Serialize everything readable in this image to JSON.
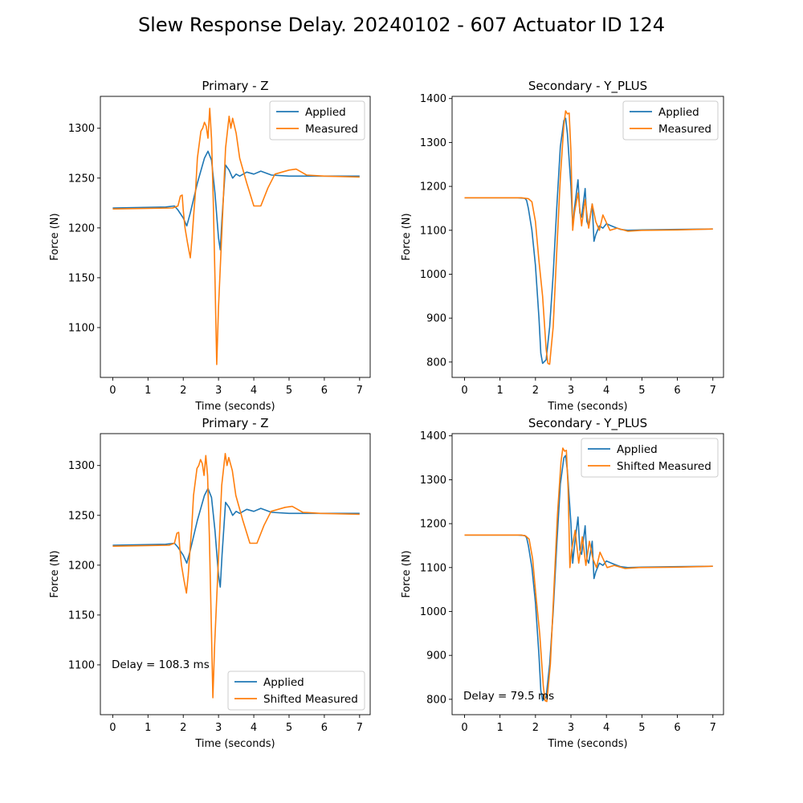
{
  "figure": {
    "title": "Slew Response Delay. 20240102 - 607 Actuator ID 124"
  },
  "colors": {
    "applied": "#1f77b4",
    "measured": "#ff7f0e"
  },
  "chart_data": [
    {
      "type": "line",
      "title": "Primary - Z",
      "xlabel": "Time (seconds)",
      "ylabel": "Force (N)",
      "xlim": [
        -0.35,
        7.3
      ],
      "ylim": [
        1050,
        1332
      ],
      "xticks": [
        0,
        1,
        2,
        3,
        4,
        5,
        6,
        7
      ],
      "yticks": [
        1100,
        1150,
        1200,
        1250,
        1300
      ],
      "legend": "upper-right",
      "annotation": "",
      "series": [
        {
          "name": "Applied",
          "color": "#1f77b4",
          "x": [
            0,
            1.5,
            1.75,
            1.85,
            2.0,
            2.1,
            2.2,
            2.4,
            2.6,
            2.7,
            2.8,
            2.9,
            3.0,
            3.05,
            3.1,
            3.2,
            3.3,
            3.4,
            3.5,
            3.6,
            3.8,
            4.0,
            4.2,
            4.5,
            5.0,
            6.0,
            7.0
          ],
          "y": [
            1220,
            1221,
            1222,
            1218,
            1210,
            1202,
            1215,
            1245,
            1270,
            1277,
            1268,
            1235,
            1190,
            1178,
            1210,
            1263,
            1258,
            1250,
            1254,
            1252,
            1256,
            1254,
            1257,
            1253,
            1252,
            1252,
            1252
          ]
        },
        {
          "name": "Measured",
          "color": "#ff7f0e",
          "x": [
            0,
            1.7,
            1.85,
            1.92,
            1.97,
            2.0,
            2.05,
            2.12,
            2.2,
            2.25,
            2.3,
            2.35,
            2.4,
            2.5,
            2.55,
            2.6,
            2.65,
            2.7,
            2.75,
            2.8,
            2.85,
            2.9,
            2.95,
            3.0,
            3.05,
            3.1,
            3.2,
            3.3,
            3.35,
            3.4,
            3.5,
            3.6,
            3.8,
            4.0,
            4.2,
            4.4,
            4.6,
            5.0,
            5.2,
            5.5,
            6.0,
            7.0
          ],
          "y": [
            1219,
            1220,
            1222,
            1232,
            1233,
            1218,
            1200,
            1185,
            1170,
            1190,
            1215,
            1238,
            1270,
            1297,
            1300,
            1306,
            1302,
            1290,
            1320,
            1290,
            1230,
            1150,
            1063,
            1120,
            1160,
            1200,
            1280,
            1312,
            1300,
            1310,
            1295,
            1270,
            1245,
            1222,
            1222,
            1240,
            1254,
            1258,
            1259,
            1253,
            1252,
            1251
          ]
        }
      ]
    },
    {
      "type": "line",
      "title": "Secondary - Y_PLUS",
      "xlabel": "Time (seconds)",
      "ylabel": "Force (N)",
      "xlim": [
        -0.35,
        7.3
      ],
      "ylim": [
        765,
        1405
      ],
      "xticks": [
        0,
        1,
        2,
        3,
        4,
        5,
        6,
        7
      ],
      "yticks": [
        800,
        900,
        1000,
        1100,
        1200,
        1300,
        1400
      ],
      "legend": "upper-right",
      "annotation": "",
      "series": [
        {
          "name": "Applied",
          "color": "#1f77b4",
          "x": [
            0,
            1.5,
            1.7,
            1.75,
            1.8,
            1.9,
            2.0,
            2.1,
            2.15,
            2.2,
            2.3,
            2.4,
            2.5,
            2.6,
            2.7,
            2.8,
            2.85,
            2.9,
            3.0,
            3.05,
            3.1,
            3.2,
            3.25,
            3.3,
            3.4,
            3.45,
            3.5,
            3.6,
            3.65,
            3.7,
            3.8,
            3.9,
            4.0,
            4.2,
            4.4,
            4.6,
            5.0,
            6.0,
            7.0
          ],
          "y": [
            1174,
            1174,
            1173,
            1168,
            1150,
            1100,
            1020,
            900,
            820,
            797,
            805,
            880,
            1000,
            1150,
            1290,
            1350,
            1355,
            1320,
            1200,
            1110,
            1150,
            1215,
            1140,
            1130,
            1195,
            1120,
            1110,
            1160,
            1075,
            1090,
            1110,
            1105,
            1115,
            1108,
            1102,
            1100,
            1101,
            1102,
            1103
          ]
        },
        {
          "name": "Measured",
          "color": "#ff7f0e",
          "x": [
            0,
            1.6,
            1.8,
            1.9,
            2.0,
            2.1,
            2.2,
            2.3,
            2.35,
            2.4,
            2.5,
            2.6,
            2.7,
            2.8,
            2.85,
            2.9,
            2.95,
            3.0,
            3.05,
            3.1,
            3.2,
            3.3,
            3.4,
            3.5,
            3.6,
            3.7,
            3.8,
            3.9,
            4.1,
            4.3,
            4.6,
            5.0,
            6.0,
            7.0
          ],
          "y": [
            1174,
            1174,
            1172,
            1165,
            1120,
            1030,
            950,
            830,
            797,
            795,
            880,
            1050,
            1220,
            1340,
            1372,
            1365,
            1367,
            1280,
            1100,
            1140,
            1185,
            1110,
            1170,
            1105,
            1160,
            1120,
            1100,
            1135,
            1100,
            1105,
            1098,
            1100,
            1101,
            1103
          ]
        }
      ]
    },
    {
      "type": "line",
      "title": "Primary - Z",
      "xlabel": "Time (seconds)",
      "ylabel": "Force (N)",
      "xlim": [
        -0.35,
        7.3
      ],
      "ylim": [
        1050,
        1332
      ],
      "xticks": [
        0,
        1,
        2,
        3,
        4,
        5,
        6,
        7
      ],
      "yticks": [
        1100,
        1150,
        1200,
        1250,
        1300
      ],
      "legend": "lower-right",
      "annotation": "Delay = 108.3 ms",
      "series": [
        {
          "name": "Applied",
          "color": "#1f77b4",
          "x": [
            0,
            1.5,
            1.75,
            1.85,
            2.0,
            2.1,
            2.2,
            2.4,
            2.6,
            2.7,
            2.8,
            2.9,
            3.0,
            3.05,
            3.1,
            3.2,
            3.3,
            3.4,
            3.5,
            3.6,
            3.8,
            4.0,
            4.2,
            4.5,
            5.0,
            6.0,
            7.0
          ],
          "y": [
            1220,
            1221,
            1222,
            1218,
            1210,
            1202,
            1215,
            1245,
            1270,
            1277,
            1268,
            1235,
            1190,
            1178,
            1210,
            1263,
            1258,
            1250,
            1254,
            1252,
            1256,
            1254,
            1257,
            1253,
            1252,
            1252,
            1252
          ]
        },
        {
          "name": "Shifted Measured",
          "color": "#ff7f0e",
          "x": [
            0,
            1.6,
            1.75,
            1.82,
            1.87,
            1.9,
            1.95,
            2.02,
            2.09,
            2.14,
            2.19,
            2.24,
            2.29,
            2.39,
            2.44,
            2.49,
            2.54,
            2.59,
            2.64,
            2.69,
            2.74,
            2.79,
            2.84,
            2.89,
            2.94,
            2.99,
            3.09,
            3.19,
            3.24,
            3.29,
            3.39,
            3.49,
            3.69,
            3.89,
            4.09,
            4.29,
            4.49,
            4.89,
            5.09,
            5.39,
            5.89,
            7.0
          ],
          "y": [
            1219,
            1220,
            1222,
            1232,
            1233,
            1218,
            1200,
            1185,
            1172,
            1190,
            1215,
            1238,
            1270,
            1297,
            1300,
            1306,
            1302,
            1290,
            1310,
            1290,
            1230,
            1150,
            1067,
            1120,
            1160,
            1200,
            1280,
            1312,
            1300,
            1308,
            1295,
            1270,
            1245,
            1222,
            1222,
            1240,
            1254,
            1258,
            1259,
            1253,
            1252,
            1251
          ]
        }
      ]
    },
    {
      "type": "line",
      "title": "Secondary - Y_PLUS",
      "xlabel": "Time (seconds)",
      "ylabel": "Force (N)",
      "xlim": [
        -0.35,
        7.3
      ],
      "ylim": [
        765,
        1405
      ],
      "xticks": [
        0,
        1,
        2,
        3,
        4,
        5,
        6,
        7
      ],
      "yticks": [
        800,
        900,
        1000,
        1100,
        1200,
        1300,
        1400
      ],
      "legend": "upper-right",
      "annotation": "Delay = 79.5 ms",
      "series": [
        {
          "name": "Applied",
          "color": "#1f77b4",
          "x": [
            0,
            1.5,
            1.7,
            1.75,
            1.8,
            1.9,
            2.0,
            2.1,
            2.15,
            2.2,
            2.3,
            2.4,
            2.5,
            2.6,
            2.7,
            2.8,
            2.85,
            2.9,
            3.0,
            3.05,
            3.1,
            3.2,
            3.25,
            3.3,
            3.4,
            3.45,
            3.5,
            3.6,
            3.65,
            3.7,
            3.8,
            3.9,
            4.0,
            4.2,
            4.4,
            4.6,
            5.0,
            6.0,
            7.0
          ],
          "y": [
            1174,
            1174,
            1173,
            1168,
            1150,
            1100,
            1020,
            900,
            820,
            797,
            805,
            880,
            1000,
            1150,
            1290,
            1350,
            1355,
            1320,
            1200,
            1110,
            1150,
            1215,
            1140,
            1130,
            1195,
            1120,
            1110,
            1160,
            1075,
            1090,
            1110,
            1105,
            1115,
            1108,
            1102,
            1100,
            1101,
            1102,
            1103
          ]
        },
        {
          "name": "Shifted Measured",
          "color": "#ff7f0e",
          "x": [
            0,
            1.6,
            1.72,
            1.82,
            1.92,
            2.02,
            2.12,
            2.22,
            2.27,
            2.32,
            2.42,
            2.52,
            2.62,
            2.72,
            2.77,
            2.82,
            2.87,
            2.92,
            2.97,
            3.02,
            3.12,
            3.22,
            3.32,
            3.42,
            3.52,
            3.62,
            3.72,
            3.82,
            4.02,
            4.22,
            4.52,
            4.92,
            6.0,
            7.0
          ],
          "y": [
            1174,
            1174,
            1172,
            1165,
            1120,
            1030,
            950,
            830,
            797,
            795,
            880,
            1050,
            1220,
            1340,
            1372,
            1365,
            1367,
            1280,
            1100,
            1140,
            1185,
            1110,
            1170,
            1105,
            1160,
            1120,
            1100,
            1135,
            1100,
            1105,
            1098,
            1100,
            1101,
            1103
          ]
        }
      ]
    }
  ]
}
